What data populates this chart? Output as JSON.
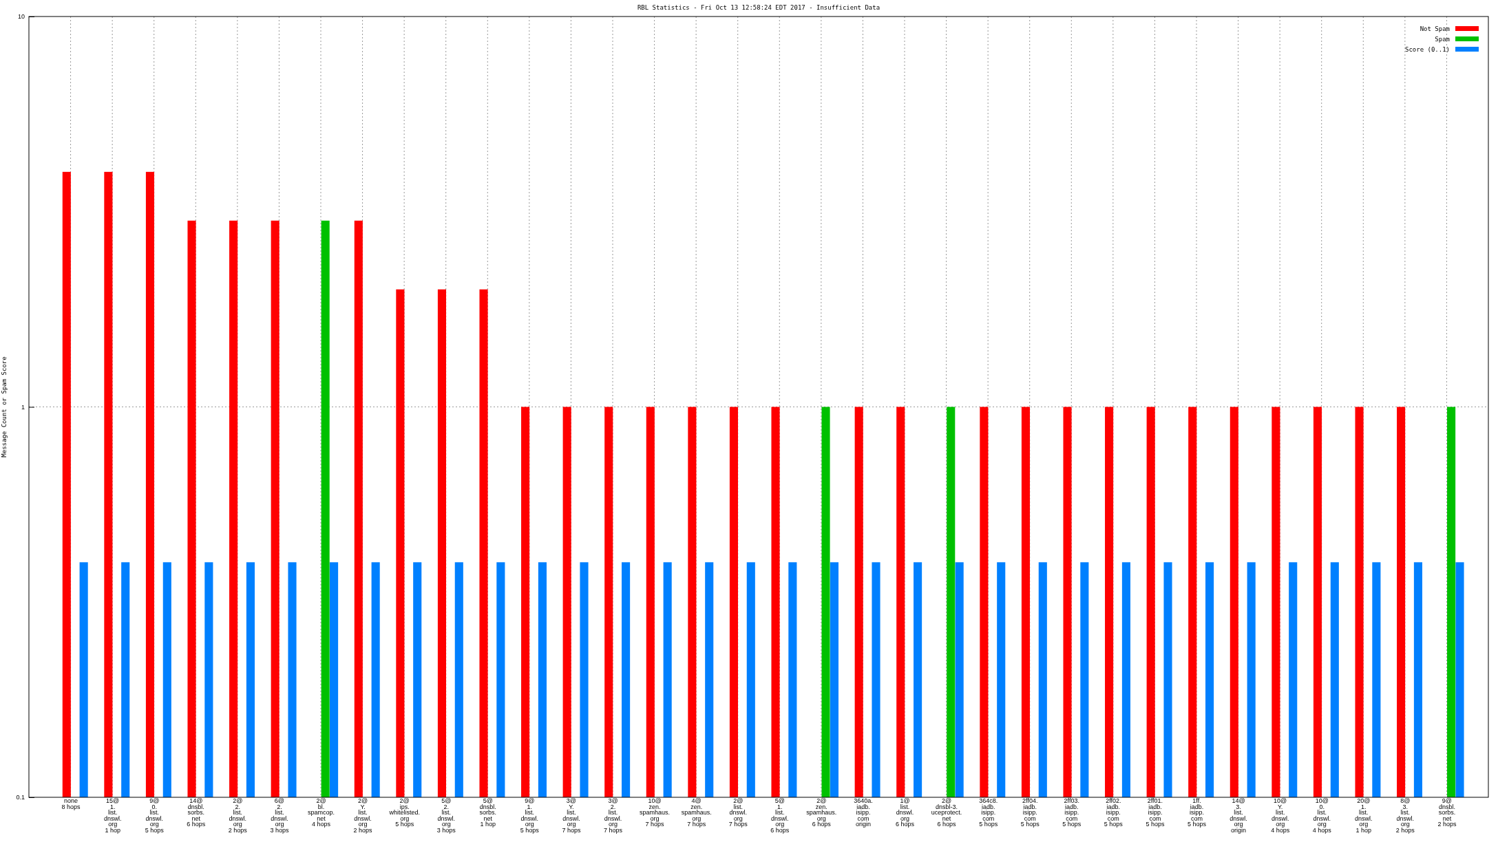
{
  "chart_data": {
    "type": "bar",
    "title": "RBL Statistics - Fri Oct 13 12:58:24 EDT 2017 - Insufficient Data",
    "ylabel": "Message Count or Spam Score",
    "categories": [
      "none\n8 hops",
      "15@\n1.\nlist.\ndnswl.\norg\n1 hop",
      "9@\n0.\nlist.\ndnswl.\norg\n5 hops",
      "14@\ndnsbl.\nsorbs.\nnet\n6 hops",
      "2@\n2.\nlist.\ndnswl.\norg\n2 hops",
      "6@\n2.\nlist.\ndnswl.\norg\n3 hops",
      "2@\nbl.\nspamcop.\nnet\n4 hops",
      "2@\nY.\nlist.\ndnswl.\norg\n2 hops",
      "2@\nips.\nwhitelisted.\norg\n5 hops",
      "5@\n2.\nlist.\ndnswl.\norg\n3 hops",
      "5@\ndnsbl.\nsorbs.\nnet\n1 hop",
      "9@\n1.\nlist.\ndnswl.\norg\n5 hops",
      "3@\nY.\nlist.\ndnswl.\norg\n7 hops",
      "3@\n2.\nlist.\ndnswl.\norg\n7 hops",
      "10@\nzen.\nspamhaus.\norg\n7 hops",
      "4@\nzen.\nspamhaus.\norg\n7 hops",
      "2@\nlist.\ndnswl.\norg\n7 hops",
      "5@\n1.\nlist.\ndnswl.\norg\n6 hops",
      "2@\nzen.\nspamhaus.\norg\n6 hops",
      "3640a.\niadb.\nisipp.\ncom\norigin",
      "1@\nlist.\ndnswl.\norg\n6 hops",
      "2@\ndnsbl-3.\nuceprotect.\nnet\n6 hops",
      "364c8.\niadb.\nisipp.\ncom\n5 hops",
      "2ff04.\niadb.\nisipp.\ncom\n5 hops",
      "2ff03.\niadb.\nisipp.\ncom\n5 hops",
      "2ff02.\niadb.\nisipp.\ncom\n5 hops",
      "2ff01.\niadb.\nisipp.\ncom\n5 hops",
      "1ff.\niadb.\nisipp.\ncom\n5 hops",
      "14@\n3.\nlist.\ndnswl.\norg\norigin",
      "10@\nY.\nlist.\ndnswl.\norg\n4 hops",
      "10@\n0.\nlist.\ndnswl.\norg\n4 hops",
      "20@\n1.\nlist.\ndnswl.\norg\n1 hop",
      "8@\n3.\nlist.\ndnswl.\norg\n2 hops",
      "9@\ndnsbl.\nsorbs.\nnet\n2 hops"
    ],
    "series": [
      {
        "name": "Not Spam",
        "color": "#ff0000",
        "values": [
          4,
          4,
          4,
          3,
          3,
          3,
          null,
          3,
          2,
          2,
          2,
          1,
          1,
          1,
          1,
          1,
          1,
          1,
          null,
          1,
          1,
          null,
          1,
          1,
          1,
          1,
          1,
          1,
          1,
          1,
          1,
          1,
          1,
          null
        ]
      },
      {
        "name": "Spam",
        "color": "#00c000",
        "values": [
          null,
          null,
          null,
          null,
          null,
          null,
          3,
          null,
          null,
          null,
          null,
          null,
          null,
          null,
          null,
          null,
          null,
          null,
          1,
          null,
          null,
          1,
          null,
          null,
          null,
          null,
          null,
          null,
          null,
          null,
          null,
          null,
          null,
          1
        ]
      },
      {
        "name": "Score (0..1)",
        "color": "#0080ff",
        "values": [
          0.4,
          0.4,
          0.4,
          0.4,
          0.4,
          0.4,
          0.4,
          0.4,
          0.4,
          0.4,
          0.4,
          0.4,
          0.4,
          0.4,
          0.4,
          0.4,
          0.4,
          0.4,
          0.4,
          0.4,
          0.4,
          0.4,
          0.4,
          0.4,
          0.4,
          0.4,
          0.4,
          0.4,
          0.4,
          0.4,
          0.4,
          0.4,
          0.4,
          0.4
        ]
      }
    ],
    "log": true,
    "ylim": [
      0.1,
      10
    ],
    "yticks": [
      0.1,
      1,
      10
    ],
    "grid": true,
    "legend": "top right"
  }
}
